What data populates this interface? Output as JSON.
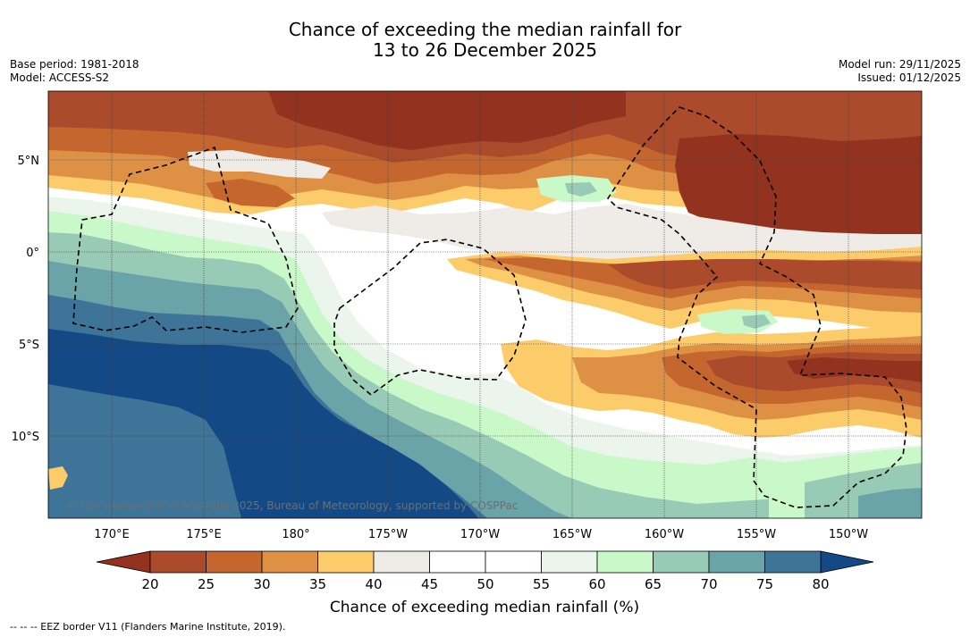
{
  "title": {
    "line1": "Chance of exceeding the median rainfall for",
    "line2": "13 to 26 December 2025"
  },
  "meta": {
    "base_period": "Base period: 1981-2018",
    "model": "Model: ACCESS-S2",
    "model_run": "Model run: 29/11/2025",
    "issued": "Issued: 01/12/2025"
  },
  "map": {
    "lon_labels": [
      "170°E",
      "175°E",
      "180°",
      "175°W",
      "170°W",
      "165°W",
      "160°W",
      "155°W",
      "150°W"
    ],
    "lat_labels": [
      "5°N",
      "0°",
      "5°S",
      "10°S"
    ],
    "watermark": "© Commonwealth of Australia 2025, Bureau of Meteorology, supported by COSPPac"
  },
  "colorbar": {
    "ticks": [
      "20",
      "25",
      "30",
      "35",
      "40",
      "45",
      "50",
      "55",
      "60",
      "65",
      "70",
      "75",
      "80"
    ],
    "colors": [
      "#ac4a2c",
      "#c6662f",
      "#de9145",
      "#fdcc6a",
      "#efebe6",
      "#ffffff",
      "#ffffff",
      "#ebf5ec",
      "#c9f8c9",
      "#97cbb5",
      "#6aa3a8",
      "#3e7498"
    ],
    "under_color": "#93331f",
    "over_color": "#134a86",
    "label": "Chance of exceeding median rainfall (%)"
  },
  "footer": {
    "eez_note": "--  --  -- EEZ border V11 (Flanders Marine Institute, 2019)."
  }
}
